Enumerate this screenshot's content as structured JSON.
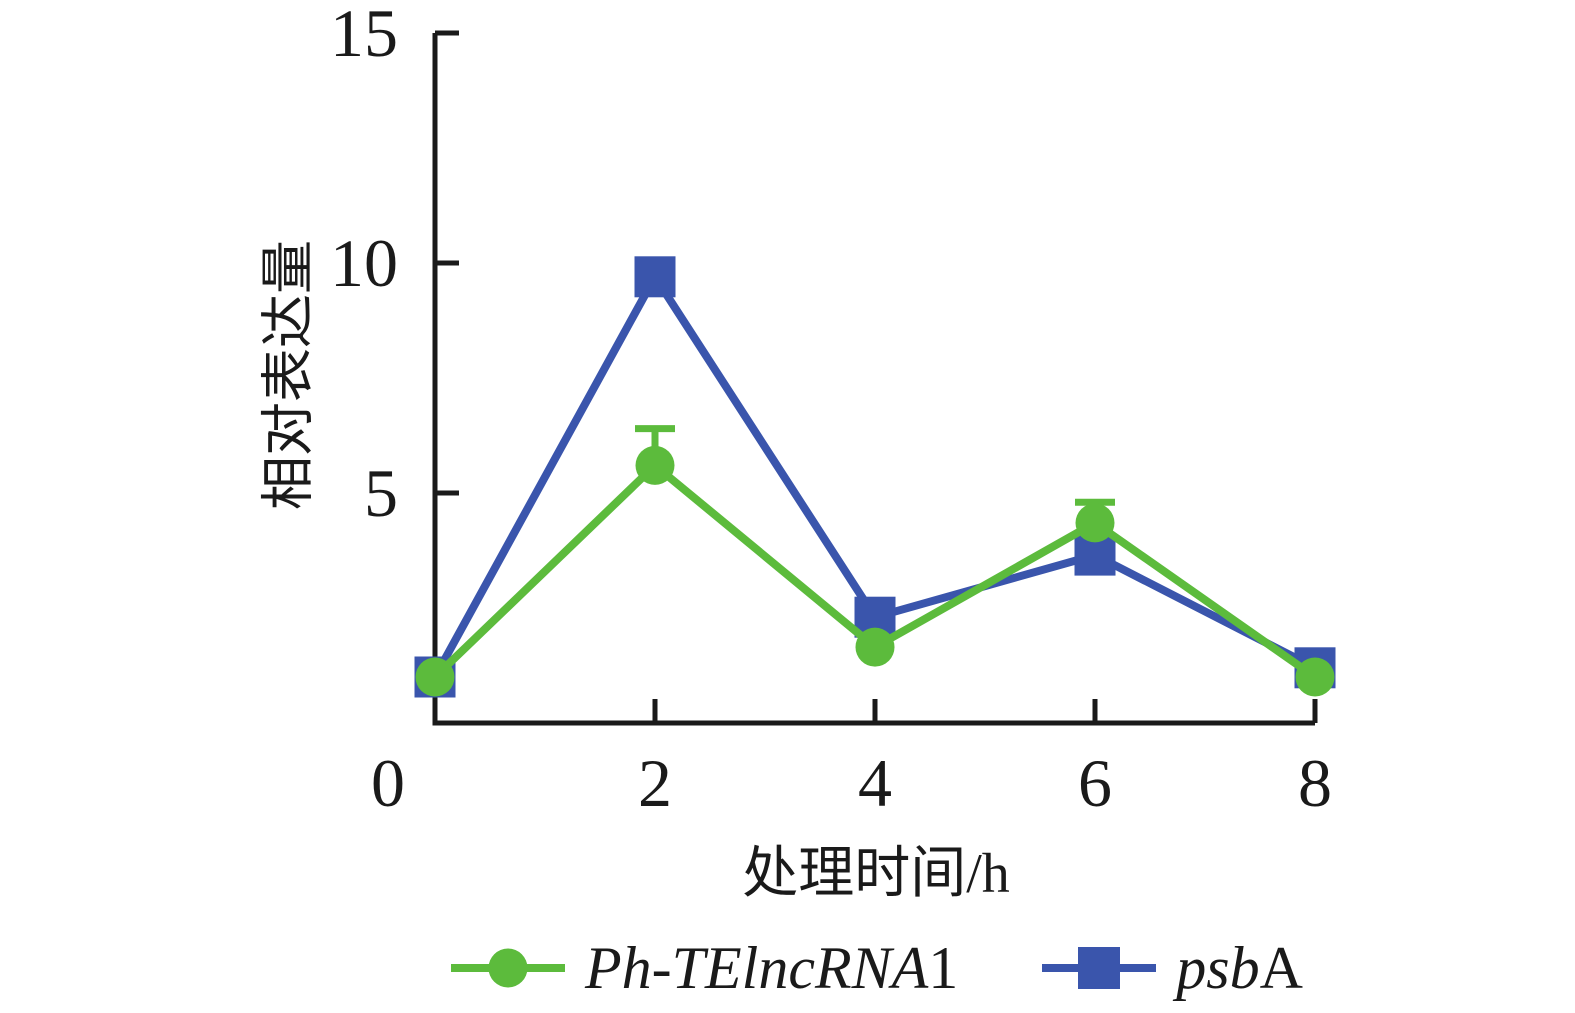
{
  "figure": {
    "background": "#ffffff",
    "axis_color": "#1a1a1a",
    "text_color": "#1a1a1a"
  },
  "chart_data": {
    "type": "line",
    "title": "",
    "xlabel": "处理时间/h",
    "ylabel": "相对表达量",
    "x": [
      0,
      2,
      4,
      6,
      8
    ],
    "xticks": [
      0,
      2,
      4,
      6,
      8
    ],
    "yticks": [
      5,
      10,
      15
    ],
    "xlim": [
      0,
      8
    ],
    "ylim": [
      0,
      15
    ],
    "grid": false,
    "legend_position": "bottom",
    "series": [
      {
        "name": "Ph-TElncRNA1",
        "label_italic": "Ph-TElncRNA",
        "label_regular": "1",
        "marker": "circle",
        "color": "#5cbb3c",
        "values": [
          1.0,
          5.6,
          1.65,
          4.35,
          1.0
        ],
        "error_plus": [
          0,
          0.8,
          0,
          0.45,
          0
        ]
      },
      {
        "name": "psbA",
        "label_italic": "psb",
        "label_regular": "A",
        "marker": "square",
        "color": "#3a55ac",
        "values": [
          1.0,
          9.7,
          2.3,
          3.65,
          1.2
        ],
        "error_plus": [
          0,
          0,
          0,
          0,
          0
        ]
      }
    ]
  }
}
